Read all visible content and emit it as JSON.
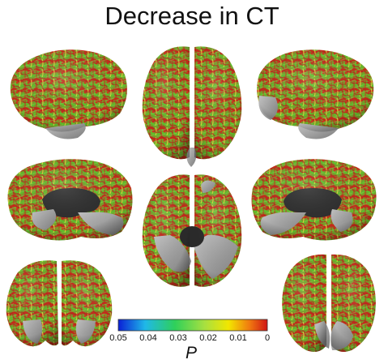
{
  "title": "Decrease in CT",
  "colorbar": {
    "ticks": [
      "0.05",
      "0.04",
      "0.03",
      "0.02",
      "0.01",
      "0"
    ],
    "label": "P",
    "stops": [
      "#0a1fd6",
      "#1fb8e8",
      "#2fd05a",
      "#a8e040",
      "#f2e600",
      "#f07a10",
      "#d01515"
    ]
  },
  "colors": {
    "cortex_base": "#6f9a2a",
    "significant_red": "#c42a1a",
    "significant_green": "#5ec22b",
    "significant_yellow": "#e8d640",
    "nonsignificant_gray": "#9a9a9a",
    "medial_wall": "#2e2e2e"
  },
  "views": [
    "lateral-left",
    "superior",
    "lateral-right",
    "medial-left",
    "inferior",
    "medial-right",
    "anterior",
    "posterior"
  ]
}
